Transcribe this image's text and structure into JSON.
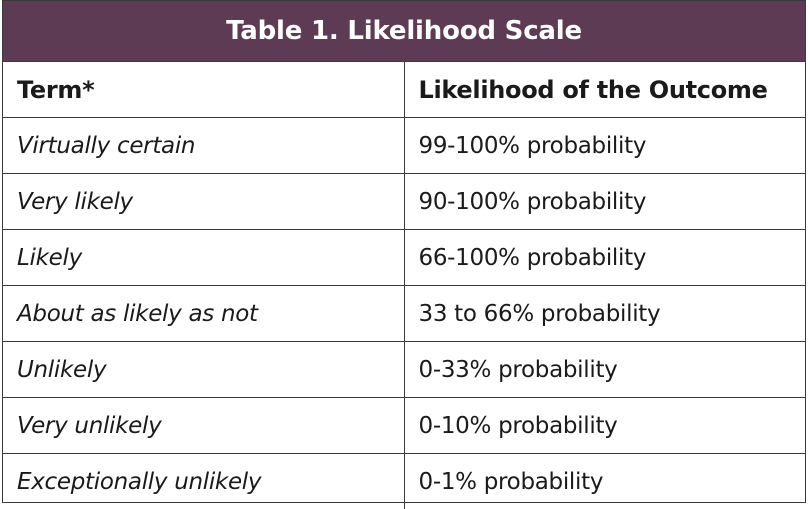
{
  "table": {
    "title": "Table 1. Likelihood Scale",
    "headers": {
      "term": "Term*",
      "likelihood": "Likelihood of the Outcome"
    },
    "rows": [
      {
        "term": "Virtually certain",
        "likelihood": "99-100% probability"
      },
      {
        "term": "Very likely",
        "likelihood": "90-100% probability"
      },
      {
        "term": "Likely",
        "likelihood": "66-100% probability"
      },
      {
        "term": "About as likely as not",
        "likelihood": "33 to 66% probability"
      },
      {
        "term": "Unlikely",
        "likelihood": "0-33% probability"
      },
      {
        "term": "Very unlikely",
        "likelihood": "0-10% probability"
      },
      {
        "term": "Exceptionally unlikely",
        "likelihood": "0-1% probability"
      }
    ]
  },
  "colors": {
    "title_background": "#5e3b54",
    "title_text": "#ffffff",
    "border": "#3a3a3a"
  }
}
